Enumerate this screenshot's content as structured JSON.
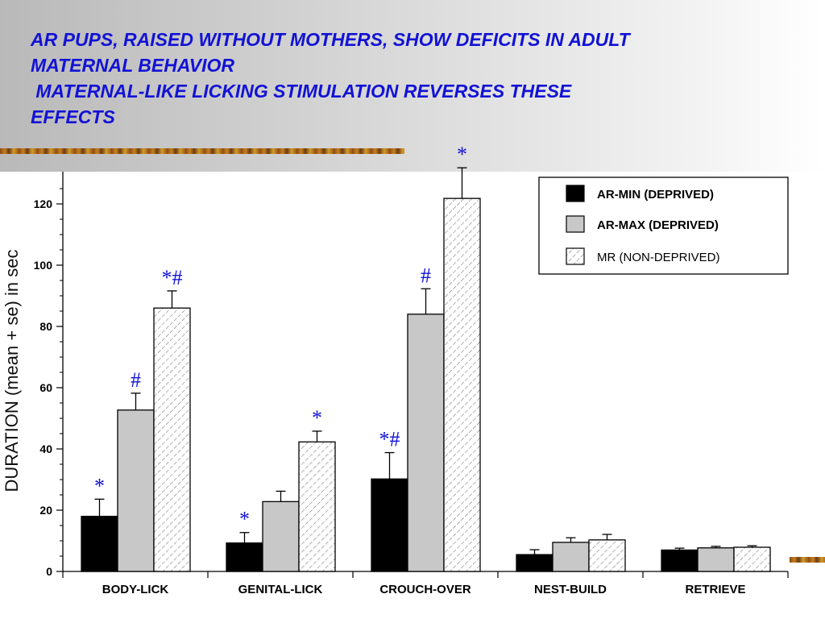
{
  "slide": {
    "title": "AR PUPS, RAISED WITHOUT MOTHERS, SHOW DEFICITS IN ADULT\nMATERNAL BEHAVIOR\n MATERNAL-LIKE LICKING STIMULATION REVERSES THESE\nEFFECTS"
  },
  "colors": {
    "title": "#1212d6",
    "ar_min": "#000000",
    "ar_max": "#c8c8c8",
    "mr": "#ffffff",
    "markers": "#1212d6"
  },
  "chart_data": {
    "type": "bar",
    "title": "",
    "xlabel": "",
    "ylabel": "DURATION (mean + se) in sec",
    "ylim": [
      0,
      130
    ],
    "yticks": [
      0,
      20,
      40,
      60,
      80,
      100,
      120
    ],
    "grid": false,
    "legend_position": "top-right",
    "categories": [
      "BODY-LICK",
      "GENITAL-LICK",
      "CROUCH-OVER",
      "NEST-BUILD",
      "RETRIEVE"
    ],
    "series": [
      {
        "name": "AR-MIN (DEPRIVED)",
        "pattern": "solid-black",
        "values": [
          18,
          9.3,
          30.2,
          5.5,
          7
        ],
        "errors": [
          5.6,
          3.4,
          8.6,
          1.6,
          0.6
        ],
        "markers": [
          "*",
          "*",
          "*#",
          "",
          ""
        ]
      },
      {
        "name": "AR-MAX (DEPRIVED)",
        "pattern": "solid-gray",
        "values": [
          52.7,
          22.8,
          84,
          9.5,
          7.7
        ],
        "errors": [
          5.5,
          3.4,
          8.3,
          1.5,
          0.5
        ],
        "markers": [
          "#",
          "",
          "#",
          "",
          ""
        ]
      },
      {
        "name": "MR (NON-DEPRIVED)",
        "pattern": "hatched",
        "values": [
          86,
          42.3,
          121.8,
          10.3,
          7.9
        ],
        "errors": [
          5.6,
          3.5,
          10,
          1.8,
          0.5
        ],
        "markers": [
          "*#",
          "*",
          "*",
          "",
          ""
        ]
      }
    ]
  }
}
